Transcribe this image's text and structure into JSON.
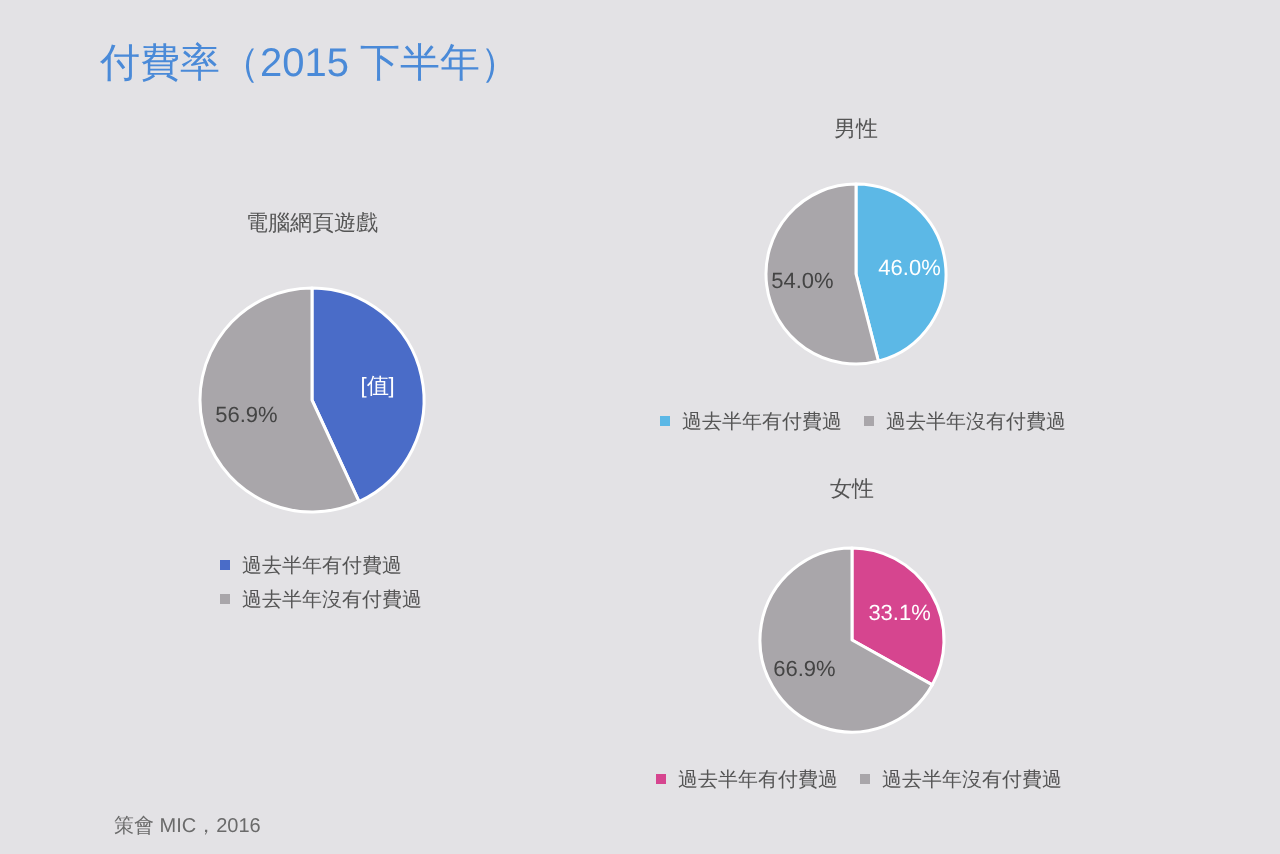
{
  "chart_data": [
    {
      "type": "other",
      "title": "付費率（2015 下半年）",
      "annotations": [
        "策會 MIC，2016"
      ]
    },
    {
      "type": "pie",
      "title": "電腦網頁遊戲",
      "categories": [
        "過去半年有付費過",
        "過去半年沒有付費過"
      ],
      "values": [
        43.1,
        56.9
      ],
      "colors": [
        "#4a6cc8",
        "#a9a6aa"
      ],
      "value_labels": [
        "[值]",
        "56.9%"
      ],
      "legend": "bottom"
    },
    {
      "type": "pie",
      "title": "男性",
      "categories": [
        "過去半年有付費過",
        "過去半年沒有付費過"
      ],
      "values": [
        46.0,
        54.0
      ],
      "colors": [
        "#5cb8e6",
        "#a9a6aa"
      ],
      "value_labels": [
        "46.0%",
        "54.0%"
      ],
      "legend": "bottom"
    },
    {
      "type": "pie",
      "title": "女性",
      "categories": [
        "過去半年有付費過",
        "過去半年沒有付費過"
      ],
      "values": [
        33.1,
        66.9
      ],
      "colors": [
        "#d6458f",
        "#a9a6aa"
      ],
      "value_labels": [
        "33.1%",
        "66.9%"
      ],
      "legend": "bottom"
    }
  ]
}
